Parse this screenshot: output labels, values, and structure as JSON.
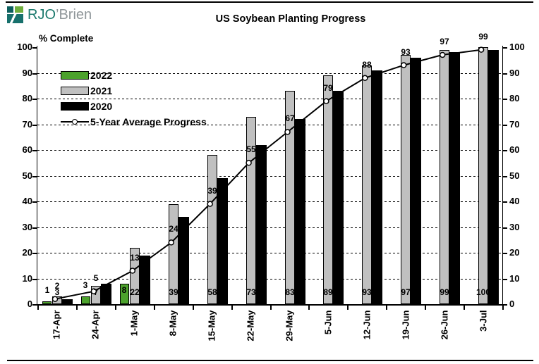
{
  "page": {
    "logo": {
      "primary": "RJO",
      "apostrophe": "’",
      "secondary": "Brien"
    }
  },
  "chart_data": {
    "type": "bar",
    "title": "US Soybean Planting Progress",
    "ylabel": "% Complete",
    "xlabel": "",
    "categories": [
      "17-Apr",
      "24-Apr",
      "1-May",
      "8-May",
      "15-May",
      "22-May",
      "29-May",
      "5-Jun",
      "12-Jun",
      "19-Jun",
      "26-Jun",
      "3-Jul"
    ],
    "series": [
      {
        "name": "2022",
        "type": "bar",
        "color": "#4ca22c",
        "values": [
          1,
          3,
          8,
          null,
          null,
          null,
          null,
          null,
          null,
          null,
          null,
          null
        ],
        "labels_shown": true
      },
      {
        "name": "2021",
        "type": "bar",
        "color": "#c0c0c0",
        "values": [
          3,
          7,
          22,
          39,
          58,
          73,
          83,
          89,
          93,
          97,
          99,
          100
        ],
        "labels_shown": true
      },
      {
        "name": "2020",
        "type": "bar",
        "color": "#000000",
        "values": [
          2,
          8,
          19,
          34,
          49,
          62,
          72,
          83,
          91,
          96,
          98,
          99
        ],
        "labels_shown": false
      },
      {
        "name": "5-Year Average Progress",
        "type": "line",
        "color": "#000000",
        "marker": "open-circle",
        "values": [
          2,
          5,
          13,
          24,
          39,
          55,
          67,
          79,
          88,
          93,
          97,
          99
        ],
        "labels_shown": true
      }
    ],
    "ylim": [
      0,
      100
    ],
    "ytick_step": 10,
    "grid": "horizontal dashed gridlines at 10-90",
    "axes": "value axis on both left and right sides",
    "legend_position": "top-left inside plot"
  }
}
